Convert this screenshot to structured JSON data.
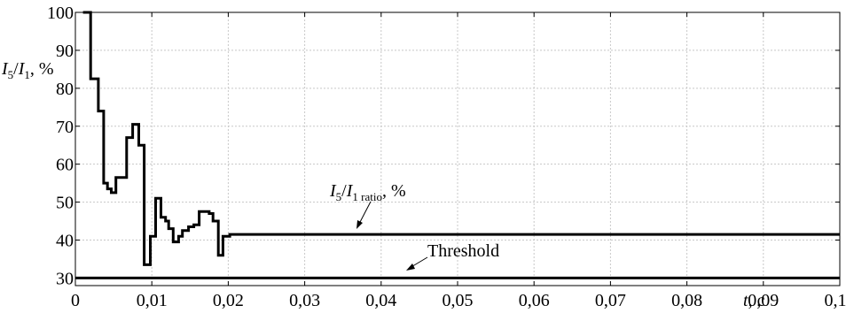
{
  "chart_data": {
    "type": "line",
    "ylabel": {
      "var": "I",
      "sub": "5",
      "slash": "/",
      "var2": "I",
      "sub2": "1",
      "unit": ", %"
    },
    "xlabel": {
      "var": "t",
      "unit": ", c"
    },
    "xlim": [
      0,
      0.1
    ],
    "ylim": [
      28,
      100
    ],
    "x_ticks": [
      0,
      0.01,
      0.02,
      0.03,
      0.04,
      0.05,
      0.06,
      0.07,
      0.08,
      0.09,
      0.1
    ],
    "x_tick_labels": [
      "0",
      "0,01",
      "0,02",
      "0,03",
      "0,04",
      "0,05",
      "0,06",
      "0,07",
      "0,08",
      "0,09",
      "0,10"
    ],
    "y_ticks": [
      30,
      40,
      50,
      60,
      70,
      80,
      90,
      100
    ],
    "y_tick_labels": [
      "30",
      "40",
      "50",
      "60",
      "70",
      "80",
      "90",
      "100"
    ],
    "grid": true,
    "series": [
      {
        "name": "I5/I1 ratio, %",
        "style": "step",
        "color": "#000000",
        "points": [
          [
            0.001,
            100
          ],
          [
            0.002,
            100
          ],
          [
            0.002,
            82.5
          ],
          [
            0.003,
            82.5
          ],
          [
            0.003,
            74
          ],
          [
            0.0037,
            74
          ],
          [
            0.0037,
            55
          ],
          [
            0.0042,
            55
          ],
          [
            0.0042,
            53.5
          ],
          [
            0.0047,
            53.5
          ],
          [
            0.0047,
            52.5
          ],
          [
            0.0053,
            52.5
          ],
          [
            0.0053,
            56.5
          ],
          [
            0.0067,
            56.5
          ],
          [
            0.0067,
            67
          ],
          [
            0.0075,
            67
          ],
          [
            0.0075,
            70.5
          ],
          [
            0.0083,
            70.5
          ],
          [
            0.0083,
            65
          ],
          [
            0.009,
            65
          ],
          [
            0.009,
            33.5
          ],
          [
            0.0098,
            33.5
          ],
          [
            0.0098,
            41
          ],
          [
            0.0105,
            41
          ],
          [
            0.0105,
            51
          ],
          [
            0.0112,
            51
          ],
          [
            0.0112,
            46
          ],
          [
            0.0118,
            46
          ],
          [
            0.0118,
            45
          ],
          [
            0.0122,
            45
          ],
          [
            0.0122,
            43
          ],
          [
            0.0128,
            43
          ],
          [
            0.0128,
            39.5
          ],
          [
            0.0135,
            39.5
          ],
          [
            0.0135,
            41
          ],
          [
            0.014,
            41
          ],
          [
            0.014,
            42.5
          ],
          [
            0.0148,
            42.5
          ],
          [
            0.0148,
            43.5
          ],
          [
            0.0155,
            43.5
          ],
          [
            0.0155,
            44
          ],
          [
            0.0162,
            44
          ],
          [
            0.0162,
            47.5
          ],
          [
            0.0175,
            47.5
          ],
          [
            0.0175,
            47
          ],
          [
            0.018,
            47
          ],
          [
            0.018,
            45
          ],
          [
            0.0187,
            45
          ],
          [
            0.0187,
            36
          ],
          [
            0.0193,
            36
          ],
          [
            0.0193,
            41
          ],
          [
            0.0202,
            41
          ],
          [
            0.0202,
            41.5
          ],
          [
            0.1,
            41.5
          ]
        ]
      },
      {
        "name": "Threshold",
        "style": "line",
        "color": "#000000",
        "points": [
          [
            0.0,
            30
          ],
          [
            0.1,
            30
          ]
        ]
      }
    ],
    "annotations": [
      {
        "id": "ratio",
        "text_var": "I",
        "text_sub": "5",
        "text_slash": "/",
        "text_var2": "I",
        "text_sub2": "1 ratio",
        "text_unit": ", %",
        "points_to": [
          0.036,
          41.5
        ]
      },
      {
        "id": "threshold",
        "text": "Threshold",
        "points_to": [
          0.044,
          30
        ]
      }
    ]
  }
}
